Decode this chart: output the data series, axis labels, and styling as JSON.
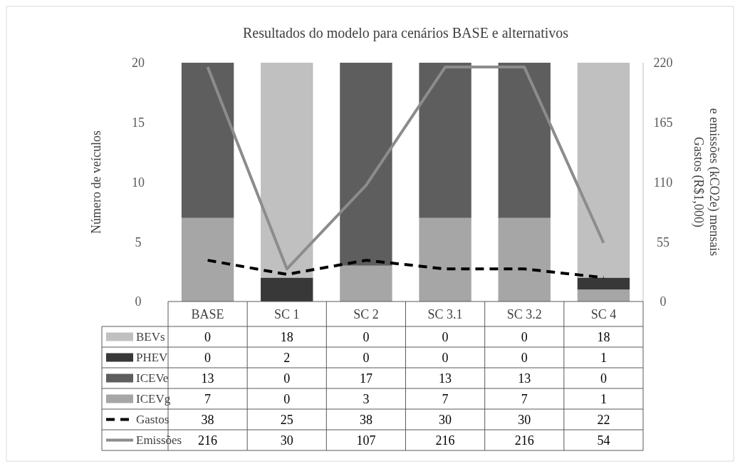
{
  "chart_data": {
    "type": "bar",
    "stacked": true,
    "title": "Resultados do modelo para cenários BASE e alternativos",
    "ylabel": "Número de veículos",
    "y2label": "Gastos (R$1,000)\ne emissões (kCO2e) mensais",
    "categories": [
      "BASE",
      "SC 1",
      "SC 2",
      "SC 3.1",
      "SC 3.2",
      "SC 4"
    ],
    "series": [
      {
        "name": "ICEVg",
        "color": "#a6a6a6",
        "values": [
          7,
          0,
          3,
          7,
          7,
          1
        ]
      },
      {
        "name": "ICEVe",
        "color": "#5e5e5e",
        "values": [
          13,
          0,
          17,
          13,
          13,
          0
        ]
      },
      {
        "name": "PHEV",
        "color": "#383838",
        "values": [
          0,
          2,
          0,
          0,
          0,
          1
        ]
      },
      {
        "name": "BEVs",
        "color": "#c0c0c0",
        "values": [
          0,
          18,
          0,
          0,
          0,
          18
        ]
      },
      {
        "name": "Gastos",
        "type": "line",
        "axis": "y2",
        "color": "#000000",
        "line_style": "dashed",
        "values": [
          38,
          25,
          38,
          30,
          30,
          22
        ]
      },
      {
        "name": "Emissões",
        "type": "line",
        "axis": "y2",
        "color": "#8c8c8c",
        "line_style": "solid",
        "values": [
          216,
          30,
          107,
          216,
          216,
          54
        ]
      }
    ],
    "ylim": [
      0,
      20
    ],
    "yticks": [
      0,
      5,
      10,
      15,
      20
    ],
    "y2lim": [
      0,
      220
    ],
    "y2ticks": [
      0,
      55,
      110,
      165,
      220
    ],
    "grid": false,
    "legend": "bottom",
    "data_labels": true
  }
}
